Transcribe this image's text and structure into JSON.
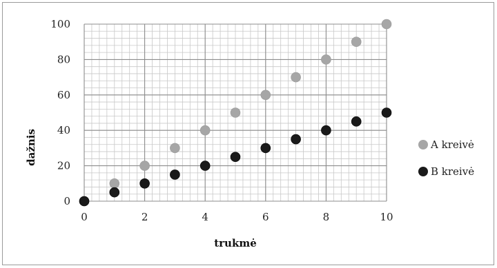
{
  "chart_data": {
    "type": "scatter",
    "title": "",
    "xlabel": "trukmė",
    "ylabel": "dažnis",
    "xlim": [
      0,
      10
    ],
    "ylim": [
      0,
      100
    ],
    "x_ticks": [
      "0",
      "2",
      "4",
      "6",
      "8",
      "10"
    ],
    "y_ticks": [
      "0",
      "20",
      "40",
      "60",
      "80",
      "100"
    ],
    "grid": true,
    "legend_position": "right",
    "series": [
      {
        "name": "A kreivė",
        "color": "#a6a6a6",
        "x": [
          0,
          1,
          2,
          3,
          4,
          5,
          6,
          7,
          8,
          9,
          10
        ],
        "y": [
          0,
          10,
          20,
          30,
          40,
          50,
          60,
          70,
          80,
          90,
          100
        ]
      },
      {
        "name": "B kreivė",
        "color": "#1a1a1a",
        "x": [
          0,
          1,
          2,
          3,
          4,
          5,
          6,
          7,
          8,
          9,
          10
        ],
        "y": [
          0,
          5,
          10,
          15,
          20,
          25,
          30,
          35,
          40,
          45,
          50
        ]
      }
    ]
  }
}
